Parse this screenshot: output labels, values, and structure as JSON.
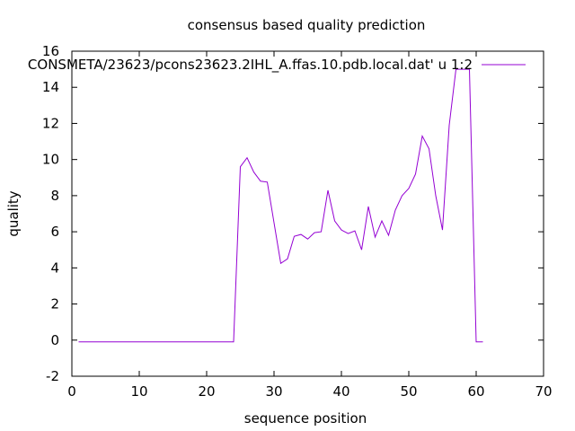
{
  "chart_data": {
    "type": "line",
    "title": "consensus based quality prediction",
    "xlabel": "sequence position",
    "ylabel": "quality",
    "xlim": [
      0,
      70
    ],
    "ylim": [
      -2,
      16
    ],
    "x_ticks": [
      0,
      10,
      20,
      30,
      40,
      50,
      60,
      70
    ],
    "y_ticks": [
      -2,
      0,
      2,
      4,
      6,
      8,
      10,
      12,
      14,
      16
    ],
    "grid": false,
    "legend_position": "top-right",
    "series": [
      {
        "name": "CONSMETA/23623/pcons23623.2IHL_A.ffas.10.pdb.local.dat' u 1:2",
        "color": "#9400d3",
        "x": [
          1,
          2,
          3,
          4,
          5,
          6,
          7,
          8,
          9,
          10,
          11,
          12,
          13,
          14,
          15,
          16,
          17,
          18,
          19,
          20,
          21,
          22,
          23,
          24,
          25,
          26,
          27,
          28,
          29,
          30,
          31,
          32,
          33,
          34,
          35,
          36,
          37,
          38,
          39,
          40,
          41,
          42,
          43,
          44,
          45,
          46,
          47,
          48,
          49,
          50,
          51,
          52,
          53,
          54,
          55,
          56,
          57,
          58,
          59,
          60,
          61
        ],
        "y": [
          -0.1,
          -0.1,
          -0.1,
          -0.1,
          -0.1,
          -0.1,
          -0.1,
          -0.1,
          -0.1,
          -0.1,
          -0.1,
          -0.1,
          -0.1,
          -0.1,
          -0.1,
          -0.1,
          -0.1,
          -0.1,
          -0.1,
          -0.1,
          -0.1,
          -0.1,
          -0.1,
          -0.1,
          9.6,
          10.1,
          9.3,
          8.8,
          8.75,
          6.5,
          4.25,
          4.5,
          5.75,
          5.85,
          5.6,
          5.95,
          6.0,
          8.3,
          6.6,
          6.1,
          5.9,
          6.05,
          5.0,
          7.4,
          5.7,
          6.6,
          5.8,
          7.2,
          8.0,
          8.4,
          9.2,
          11.3,
          10.6,
          8.0,
          6.1,
          11.9,
          15.0,
          15.0,
          15.0,
          -0.1,
          -0.1
        ]
      }
    ]
  }
}
